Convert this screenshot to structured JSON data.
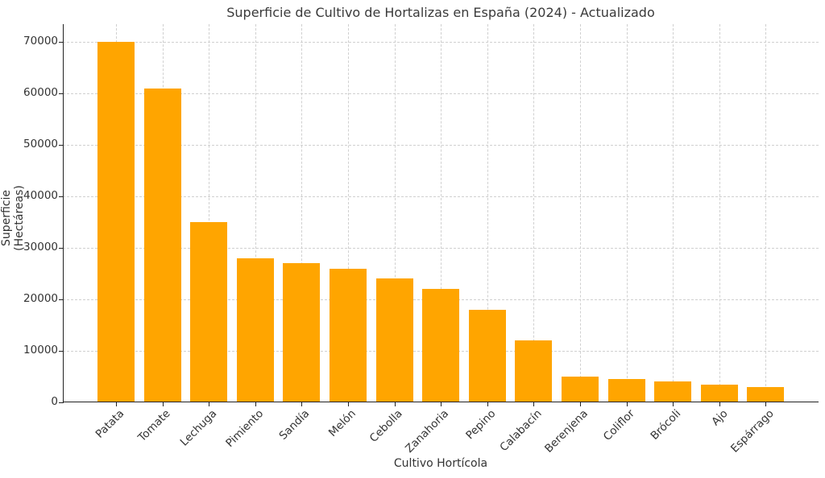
{
  "chart_data": {
    "type": "bar",
    "title": "Superficie de Cultivo de Hortalizas en España (2024) - Actualizado",
    "xlabel": "Cultivo Hortícola",
    "ylabel": "Superficie (Hectáreas)",
    "categories": [
      "Patata",
      "Tomate",
      "Lechuga",
      "Pimiento",
      "Sandía",
      "Melón",
      "Cebolla",
      "Zanahoria",
      "Pepino",
      "Calabacín",
      "Berenjena",
      "Coliflor",
      "Brócoli",
      "Ajo",
      "Espárrago"
    ],
    "values": [
      70000,
      61000,
      35000,
      28000,
      27000,
      26000,
      24000,
      22000,
      18000,
      12000,
      5000,
      4500,
      4000,
      3500,
      3000
    ],
    "ylim": [
      0,
      73500
    ],
    "yticks": [
      0,
      10000,
      20000,
      30000,
      40000,
      50000,
      60000,
      70000
    ],
    "grid": true,
    "bar_color": "#ffa500",
    "legend": null
  }
}
